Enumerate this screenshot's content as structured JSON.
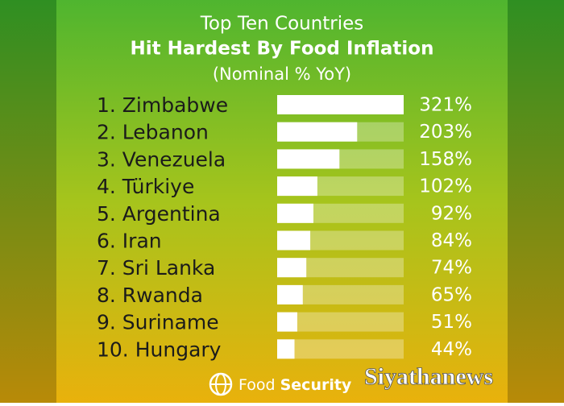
{
  "chart_data": {
    "type": "bar",
    "orientation": "horizontal",
    "title": "Top Ten Countries",
    "subtitle": "Hit Hardest By Food Inflation",
    "subtitle2": "(Nominal % YoY)",
    "categories": [
      "1. Zimbabwe",
      "2. Lebanon",
      "3. Venezuela",
      "4. Türkiye",
      "5. Argentina",
      "6. Iran",
      "7. Sri Lanka",
      "8. Rwanda",
      "9. Suriname",
      "10. Hungary"
    ],
    "values": [
      321,
      203,
      158,
      102,
      92,
      84,
      74,
      65,
      51,
      44
    ],
    "value_labels": [
      "321%",
      "203%",
      "158%",
      "102%",
      "92%",
      "84%",
      "74%",
      "65%",
      "51%",
      "44%"
    ],
    "color": "#ffffff"
  },
  "footer": {
    "brand": "Food",
    "brand_bold": "Security"
  },
  "watermark": "Siyathanews"
}
